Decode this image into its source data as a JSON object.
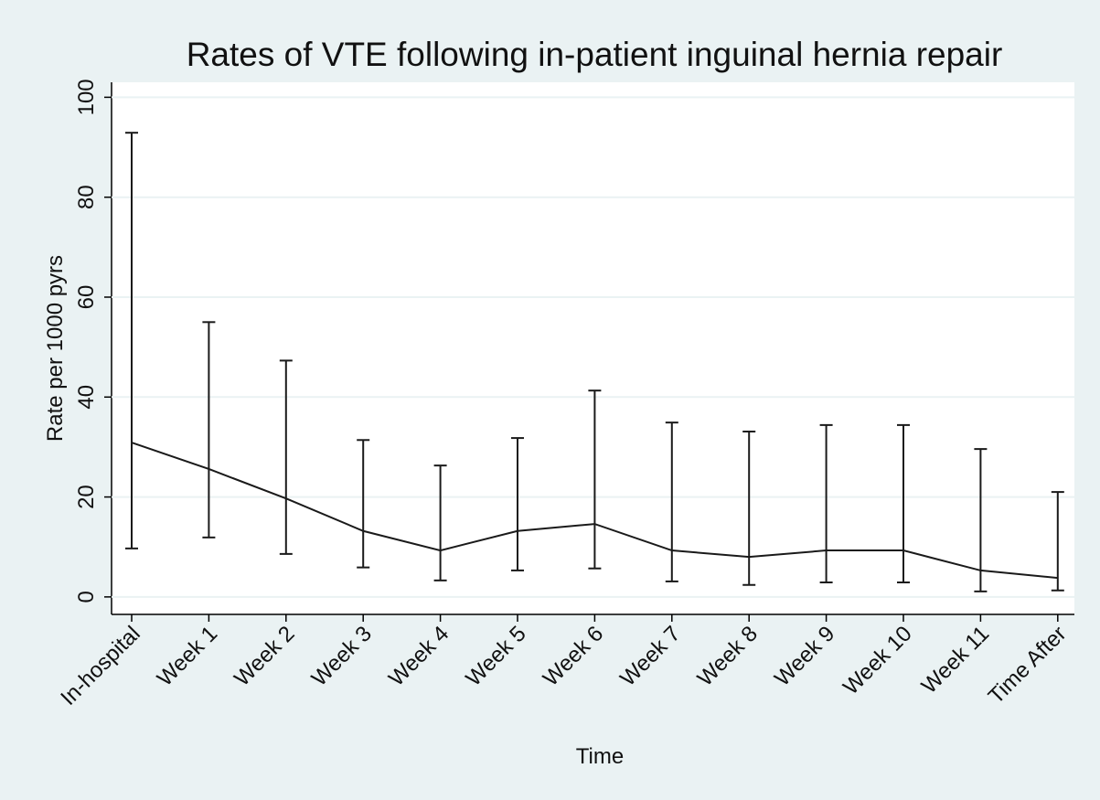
{
  "chart_data": {
    "type": "line-errorbar",
    "title": "Rates of VTE following in-patient inguinal hernia repair",
    "x_label": "Time",
    "y_label": "Rate per 1000 pyrs",
    "categories": [
      "In-hospital",
      "Week 1",
      "Week 2",
      "Week 3",
      "Week 4",
      "Week 5",
      "Week 6",
      "Week 7",
      "Week 8",
      "Week 9",
      "Week 10",
      "Week 11",
      "Time After"
    ],
    "values": [
      30.9,
      25.6,
      19.7,
      13.2,
      9.3,
      13.2,
      14.6,
      9.3,
      8.0,
      9.3,
      9.3,
      5.3,
      3.8
    ],
    "lower": [
      9.7,
      11.9,
      8.6,
      5.9,
      3.3,
      5.3,
      5.7,
      3.1,
      2.4,
      2.9,
      2.9,
      1.1,
      1.3
    ],
    "upper": [
      92.9,
      55.0,
      47.3,
      31.4,
      26.3,
      31.8,
      41.3,
      34.9,
      33.1,
      34.4,
      34.4,
      29.6,
      21.0
    ],
    "color": "#1a1a1a",
    "ylim": [
      -3.5,
      103
    ],
    "yticks": [
      0,
      20,
      40,
      60,
      80,
      100
    ],
    "grid": true
  }
}
